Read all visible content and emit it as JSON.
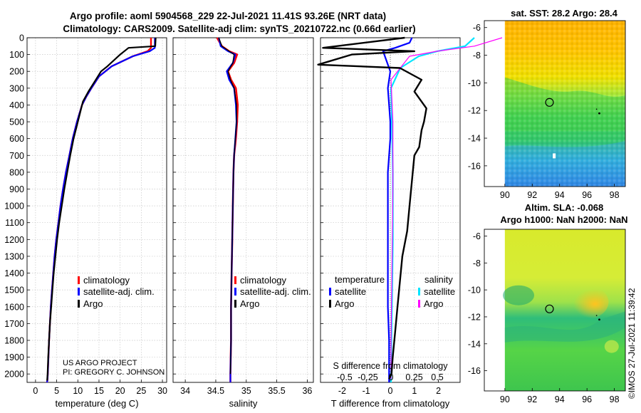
{
  "title": {
    "line1": "Argo profile: aoml 5904568_229 22-Jul-2021 11.41S 93.26E (NRT data)",
    "line2": "Climatology: CARS2009. Satellite-adj clim: synTS_20210722.nc (0.66d earlier)"
  },
  "right_titles": {
    "sst": "sat. SST: 28.2 Argo: 28.4",
    "sla_line1": "Altim. SLA: -0.068",
    "sla_line2": "Argo h1000: NaN h2000: NaN"
  },
  "timestamp": "©IMOS 27-Jul-2021 11:39:42",
  "credit": {
    "line1": "US ARGO PROJECT",
    "line2": "PI: GREGORY C. JOHNSON"
  },
  "colors": {
    "climatology": "#ff0000",
    "satellite": "#0000ff",
    "argo": "#000000",
    "sat_salinity": "#00e5ff",
    "argo_salinity": "#ff00ff"
  },
  "chart_data": [
    {
      "id": "temperature",
      "type": "line",
      "xlabel": "temperature (deg C)",
      "ylabel": "",
      "xlim": [
        -2,
        31
      ],
      "ylim": [
        2050,
        0
      ],
      "xticks": [
        0,
        5,
        10,
        15,
        20,
        25,
        30
      ],
      "xtick_labels": [
        "0",
        "5",
        "10",
        "15",
        "20",
        "25",
        "30"
      ],
      "yticks": [
        0,
        100,
        200,
        300,
        400,
        500,
        600,
        700,
        800,
        900,
        1000,
        1100,
        1200,
        1300,
        1400,
        1500,
        1600,
        1700,
        1800,
        1900,
        2000
      ],
      "legend": [
        "climatology",
        "satellite-adj. clim.",
        "Argo"
      ],
      "series": [
        {
          "name": "climatology",
          "x": [
            27.3,
            27.3,
            26.5,
            23,
            18,
            15,
            13.2,
            12,
            11,
            9.8,
            8.8,
            8,
            7.2,
            6.5,
            5.9,
            5.4,
            4.9,
            4.5,
            4.2,
            3.9,
            3.6,
            3.4,
            3.2,
            3.05,
            2.9,
            2.8,
            2.7
          ],
          "y": [
            0,
            60,
            80,
            110,
            170,
            230,
            300,
            350,
            400,
            500,
            600,
            700,
            800,
            900,
            1000,
            1100,
            1200,
            1300,
            1400,
            1500,
            1600,
            1700,
            1800,
            1900,
            2000,
            2040,
            2050
          ]
        },
        {
          "name": "satellite-adj. clim.",
          "x": [
            28.2,
            28.2,
            27,
            23,
            18,
            15,
            13.2,
            12,
            11,
            9.8,
            8.8,
            8,
            7.2,
            6.5,
            5.9,
            5.4,
            4.9,
            4.5,
            4.2,
            3.9,
            3.6,
            3.4,
            3.2,
            3.05,
            2.9,
            2.8,
            2.7
          ],
          "y": [
            0,
            60,
            80,
            110,
            170,
            230,
            300,
            350,
            400,
            500,
            600,
            700,
            800,
            900,
            1000,
            1100,
            1200,
            1300,
            1400,
            1500,
            1600,
            1700,
            1800,
            1900,
            2000,
            2040,
            2050
          ]
        },
        {
          "name": "Argo",
          "x": [
            28.4,
            28.3,
            22,
            20,
            17,
            15.5,
            14,
            12.5,
            11.2,
            10,
            9,
            8.2,
            7.5,
            6.8,
            6.2,
            5.6,
            5.1,
            4.7,
            4.3,
            4,
            3.7,
            3.4,
            3.2,
            3,
            2.85,
            2.75
          ],
          "y": [
            0,
            50,
            60,
            100,
            170,
            200,
            260,
            320,
            380,
            500,
            600,
            700,
            800,
            900,
            1000,
            1100,
            1200,
            1300,
            1400,
            1500,
            1600,
            1700,
            1800,
            1900,
            2000,
            2040
          ]
        }
      ]
    },
    {
      "id": "salinity",
      "type": "line",
      "xlabel": "salinity",
      "ylabel": "",
      "xlim": [
        33.8,
        36.1
      ],
      "ylim": [
        2050,
        0
      ],
      "xticks": [
        34,
        34.5,
        35,
        35.5,
        36
      ],
      "xtick_labels": [
        "34",
        "34.5",
        "35",
        "35.5",
        "36"
      ],
      "legend": [
        "climatology",
        "satellite-adj. clim.",
        "Argo"
      ],
      "series": [
        {
          "name": "climatology",
          "x": [
            34.52,
            34.6,
            34.72,
            34.85,
            34.8,
            34.7,
            34.75,
            34.83,
            34.86,
            34.85,
            34.83,
            34.8,
            34.79,
            34.78,
            34.77,
            34.76,
            34.75,
            34.75,
            34.74,
            34.74
          ],
          "y": [
            0,
            50,
            80,
            100,
            150,
            200,
            250,
            300,
            400,
            500,
            600,
            700,
            800,
            1000,
            1200,
            1400,
            1600,
            1800,
            2000,
            2050
          ]
        },
        {
          "name": "satellite-adj. clim.",
          "x": [
            34.55,
            34.58,
            34.7,
            34.82,
            34.78,
            34.68,
            34.72,
            34.8,
            34.83,
            34.84,
            34.82,
            34.8,
            34.79,
            34.78,
            34.77,
            34.76,
            34.75,
            34.75,
            34.74,
            34.74
          ],
          "y": [
            0,
            50,
            80,
            100,
            150,
            200,
            250,
            300,
            400,
            500,
            600,
            700,
            800,
            1000,
            1200,
            1400,
            1600,
            1800,
            2000,
            2050
          ]
        },
        {
          "name": "Argo",
          "x": [
            34.55,
            34.6,
            34.72,
            34.8,
            34.78,
            34.7,
            34.74,
            34.8,
            34.84,
            34.84,
            34.82,
            34.8,
            34.79,
            34.78,
            34.77,
            34.76,
            34.75,
            34.75,
            34.74
          ],
          "y": [
            0,
            50,
            80,
            100,
            150,
            200,
            250,
            300,
            400,
            500,
            600,
            700,
            800,
            1000,
            1200,
            1400,
            1600,
            1800,
            2000
          ]
        }
      ]
    },
    {
      "id": "difference",
      "type": "line",
      "xlabel": "T difference from climatology",
      "top_label": "S difference from climatology",
      "xlim": [
        -2.9,
        2.9
      ],
      "ylim": [
        2050,
        0
      ],
      "xticks": [
        -2,
        -1,
        0,
        1,
        2
      ],
      "xtick_labels": [
        "-2",
        "-1",
        "0",
        "1",
        "2"
      ],
      "sticks": [
        -0.5,
        -0.25,
        0,
        0.25,
        0.5
      ],
      "stick_labels": [
        "-0.5",
        "-0.25",
        "0",
        "0.25",
        "0.5"
      ],
      "legend_t_title": "temperature",
      "legend_s_title": "salinity",
      "legend_t": [
        "satellite",
        "Argo"
      ],
      "legend_s": [
        "satellite",
        "Argo"
      ],
      "series": [
        {
          "name": "T satellite",
          "x": [
            0.9,
            0.8,
            0.2,
            -0.3,
            -0.2,
            0,
            -0.1,
            -0.05,
            0,
            0,
            -0.05,
            -0.1,
            -0.1,
            -0.1,
            -0.1,
            -0.1,
            -0.05,
            -0.05,
            -0.05,
            -0.05
          ],
          "y": [
            0,
            30,
            60,
            80,
            120,
            200,
            300,
            400,
            500,
            600,
            700,
            800,
            1000,
            1200,
            1400,
            1600,
            1800,
            1900,
            2000,
            2050
          ]
        },
        {
          "name": "T Argo",
          "x": [
            0.6,
            -2.8,
            1.0,
            -1.6,
            -3.0,
            0.4,
            1.3,
            1.0,
            1.5,
            1.4,
            1.3,
            1.2,
            1.0,
            0.9,
            0.8,
            0.7,
            0.5,
            0.4,
            0.3,
            0.2,
            0.1,
            0.05,
            -0.05
          ],
          "y": [
            0,
            60,
            80,
            100,
            160,
            180,
            250,
            320,
            420,
            500,
            550,
            650,
            700,
            850,
            1000,
            1150,
            1300,
            1450,
            1600,
            1750,
            1900,
            2000,
            2030
          ]
        },
        {
          "name": "S satellite",
          "x": [
            0.9,
            0.8,
            0.5,
            0.3,
            0.1,
            0,
            0.01,
            0.02,
            0.02,
            0.01,
            0,
            0
          ],
          "y": [
            0,
            50,
            80,
            110,
            180,
            300,
            500,
            800,
            1200,
            1600,
            2000,
            2050
          ]
        },
        {
          "name": "S Argo",
          "x": [
            1.2,
            0.9,
            0.5,
            0.2,
            0,
            0.02,
            0.02,
            0.01,
            0,
            0
          ],
          "y": [
            0,
            50,
            80,
            110,
            250,
            500,
            900,
            1400,
            1800,
            2030
          ]
        }
      ]
    },
    {
      "id": "sst_map",
      "type": "heatmap",
      "title": "sat. SST: 28.2 Argo: 28.4",
      "xlim": [
        88.5,
        98.8
      ],
      "ylim": [
        -17.5,
        -5.5
      ],
      "xticks": [
        90,
        92,
        94,
        96,
        98
      ],
      "yticks": [
        -6,
        -8,
        -10,
        -12,
        -14,
        -16
      ],
      "profile_lat": -11.41,
      "profile_lon": 93.26
    },
    {
      "id": "sla_map",
      "type": "heatmap",
      "title": "Altim. SLA: -0.068",
      "xlim": [
        88.5,
        98.8
      ],
      "ylim": [
        -17.5,
        -5.5
      ],
      "xticks": [
        90,
        92,
        94,
        96,
        98
      ],
      "yticks": [
        -6,
        -8,
        -10,
        -12,
        -14,
        -16
      ],
      "profile_lat": -11.41,
      "profile_lon": 93.26
    }
  ]
}
